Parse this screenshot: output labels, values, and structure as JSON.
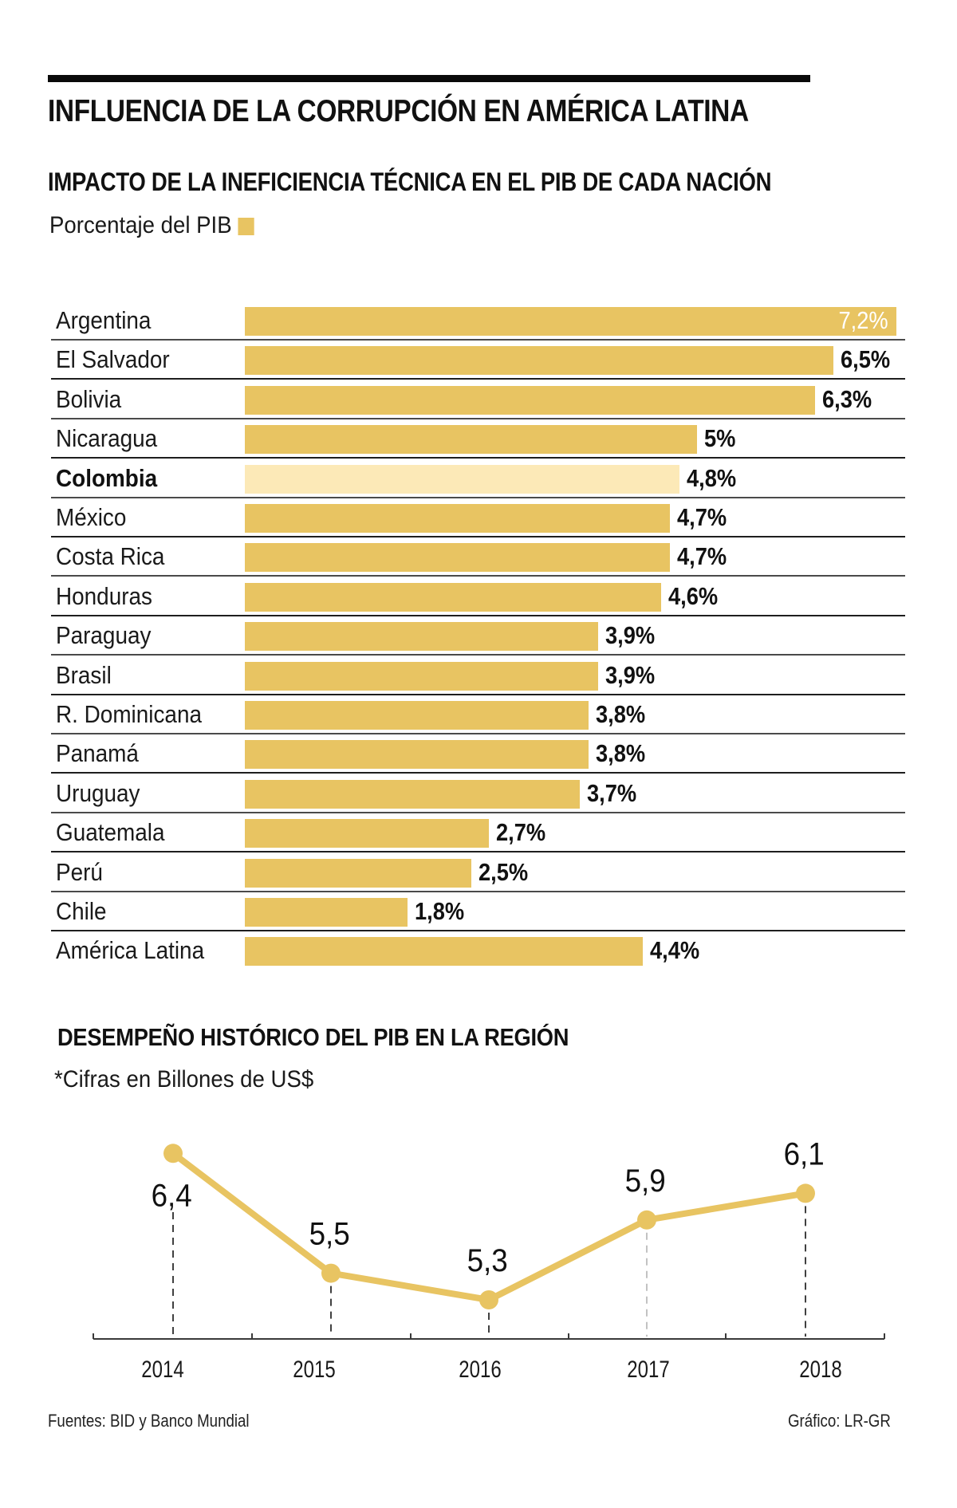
{
  "header": {
    "title": "INFLUENCIA DE LA CORRUPCIÓN EN AMÉRICA LATINA"
  },
  "colors": {
    "bar": "#E8C462",
    "bar_highlight": "#FCE9B7",
    "line": "#E8C462",
    "text": "#111111",
    "rule": "#0a0a0a"
  },
  "footer": {
    "sources": "Fuentes: BID y Banco Mundial",
    "credit": "Gráfico: LR-GR"
  },
  "chart_data": [
    {
      "type": "bar",
      "orientation": "horizontal",
      "title": "IMPACTO DE LA INEFICIENCIA TÉCNICA EN EL PIB DE CADA NACIÓN",
      "legend": "Porcentaje del PIB",
      "legend_placement": "top-left",
      "xlabel": "",
      "ylabel": "",
      "xlim": [
        0,
        7.2
      ],
      "grid": false,
      "unit": "%",
      "categories": [
        "Argentina",
        "El Salvador",
        "Bolivia",
        "Nicaragua",
        "Colombia",
        "México",
        "Costa Rica",
        "Honduras",
        "Paraguay",
        "Brasil",
        "R. Dominicana",
        "Panamá",
        "Uruguay",
        "Guatemala",
        "Perú",
        "Chile",
        "América Latina"
      ],
      "values": [
        7.2,
        6.5,
        6.3,
        5.0,
        4.8,
        4.7,
        4.7,
        4.6,
        3.9,
        3.9,
        3.8,
        3.8,
        3.7,
        2.7,
        2.5,
        1.8,
        4.4
      ],
      "labels": [
        "7,2%",
        "6,5%",
        "6,3%",
        "5%",
        "4,8%",
        "4,7%",
        "4,7%",
        "4,6%",
        "3,9%",
        "3,9%",
        "3,8%",
        "3,8%",
        "3,7%",
        "2,7%",
        "2,5%",
        "1,8%",
        "4,4%"
      ],
      "highlight": "Colombia"
    },
    {
      "type": "line",
      "title": "DESEMPEÑO HISTÓRICO DEL PIB EN LA REGIÓN",
      "subtitle": "*Cifras en Billones de US$",
      "xlabel": "",
      "ylabel": "",
      "x": [
        "2014",
        "2015",
        "2016",
        "2017",
        "2018"
      ],
      "values": [
        6.4,
        5.5,
        5.3,
        5.9,
        6.1
      ],
      "labels": [
        "6,4",
        "5,5",
        "5,3",
        "5,9",
        "6,1"
      ],
      "ylim": [
        4.99,
        6.65
      ],
      "grid": false,
      "markers": true,
      "legend": null
    }
  ]
}
